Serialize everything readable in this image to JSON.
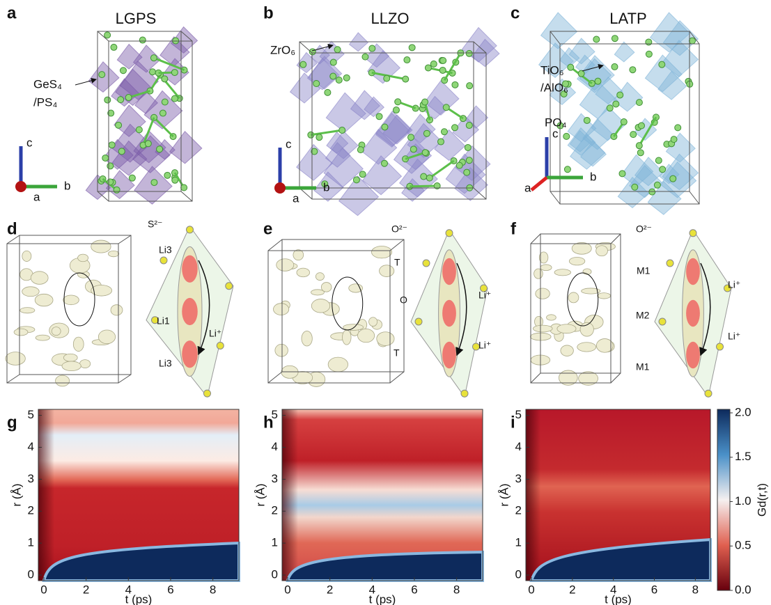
{
  "panels_top": [
    {
      "letter": "a",
      "title": "LGPS",
      "callouts": [
        "GeS₄",
        "/PS₄"
      ],
      "axes": [
        "c",
        "a",
        "b"
      ]
    },
    {
      "letter": "b",
      "title": "LLZO",
      "callouts": [
        "ZrO₆"
      ],
      "axes": [
        "c",
        "a",
        "b"
      ]
    },
    {
      "letter": "c",
      "title": "LATP",
      "callouts": [
        "TiO₆",
        "/AlO₆",
        "PO₄"
      ],
      "axes": [
        "c",
        "a",
        "b"
      ]
    }
  ],
  "panels_mid": [
    {
      "letter": "d",
      "labels": [
        "S²⁻",
        "Li3",
        "Li1",
        "Li⁺",
        "Li3"
      ]
    },
    {
      "letter": "e",
      "labels": [
        "O²⁻",
        "T",
        "O",
        "Li⁺",
        "Li⁺",
        "T"
      ]
    },
    {
      "letter": "f",
      "labels": [
        "O²⁻",
        "M1",
        "Li⁺",
        "M2",
        "Li⁺",
        "M1"
      ]
    }
  ],
  "panels_heat": [
    {
      "letter": "g",
      "xticks": [
        0,
        2,
        4,
        6,
        8
      ],
      "yticks": [
        0,
        1,
        2,
        3,
        4,
        5
      ],
      "xlabel": "t (ps)",
      "ylabel": "r (Å)"
    },
    {
      "letter": "h",
      "xticks": [
        0,
        2,
        4,
        6,
        8
      ],
      "yticks": [
        0,
        1,
        2,
        3,
        4,
        5
      ],
      "xlabel": "t (ps)",
      "ylabel": "r (Å)"
    },
    {
      "letter": "i",
      "xticks": [
        0,
        2,
        4,
        6,
        8
      ],
      "yticks": [
        0,
        1,
        2,
        3,
        4,
        5
      ],
      "xlabel": "t (ps)",
      "ylabel": "r (Å)"
    }
  ],
  "colorbar": {
    "ticks": [
      "0.0",
      "0.5",
      "1.0",
      "1.5",
      "2.0"
    ],
    "label": "Gd(r,t)"
  }
}
